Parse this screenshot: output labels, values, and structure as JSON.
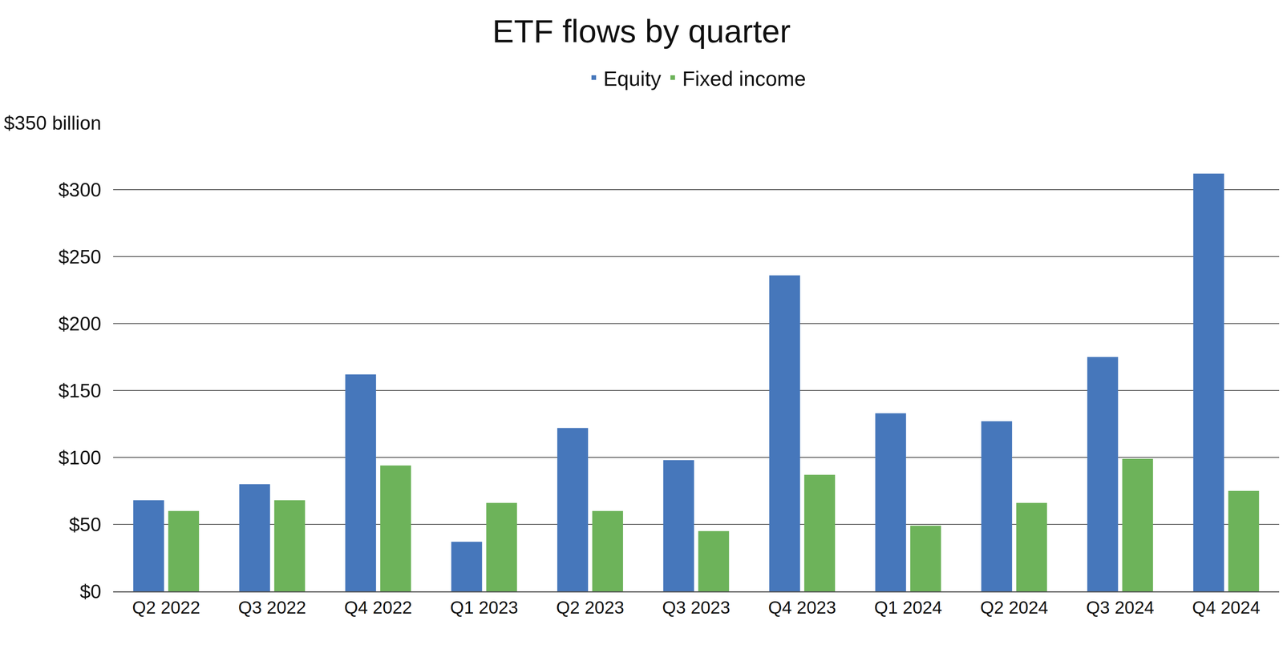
{
  "chart_data": {
    "type": "bar",
    "title": "ETF flows by quarter",
    "categories": [
      "Q2 2022",
      "Q3 2022",
      "Q4 2022",
      "Q1 2023",
      "Q2 2023",
      "Q3 2023",
      "Q4 2023",
      "Q1 2024",
      "Q2 2024",
      "Q3 2024",
      "Q4 2024"
    ],
    "series": [
      {
        "name": "Equity",
        "color": "#4677bb",
        "values": [
          68,
          80,
          162,
          37,
          122,
          98,
          236,
          133,
          127,
          175,
          312
        ]
      },
      {
        "name": "Fixed income",
        "color": "#6db35a",
        "values": [
          60,
          68,
          94,
          66,
          60,
          45,
          87,
          49,
          66,
          99,
          75
        ]
      }
    ],
    "ylim": [
      0,
      350
    ],
    "yticks": [
      {
        "value": 0,
        "label": "$0"
      },
      {
        "value": 50,
        "label": "$50"
      },
      {
        "value": 100,
        "label": "$100"
      },
      {
        "value": 150,
        "label": "$150"
      },
      {
        "value": 200,
        "label": "$200"
      },
      {
        "value": 250,
        "label": "$250"
      },
      {
        "value": 300,
        "label": "$300"
      },
      {
        "value": 350,
        "label": "$350 billion"
      }
    ],
    "grid": true,
    "legend": "top"
  }
}
